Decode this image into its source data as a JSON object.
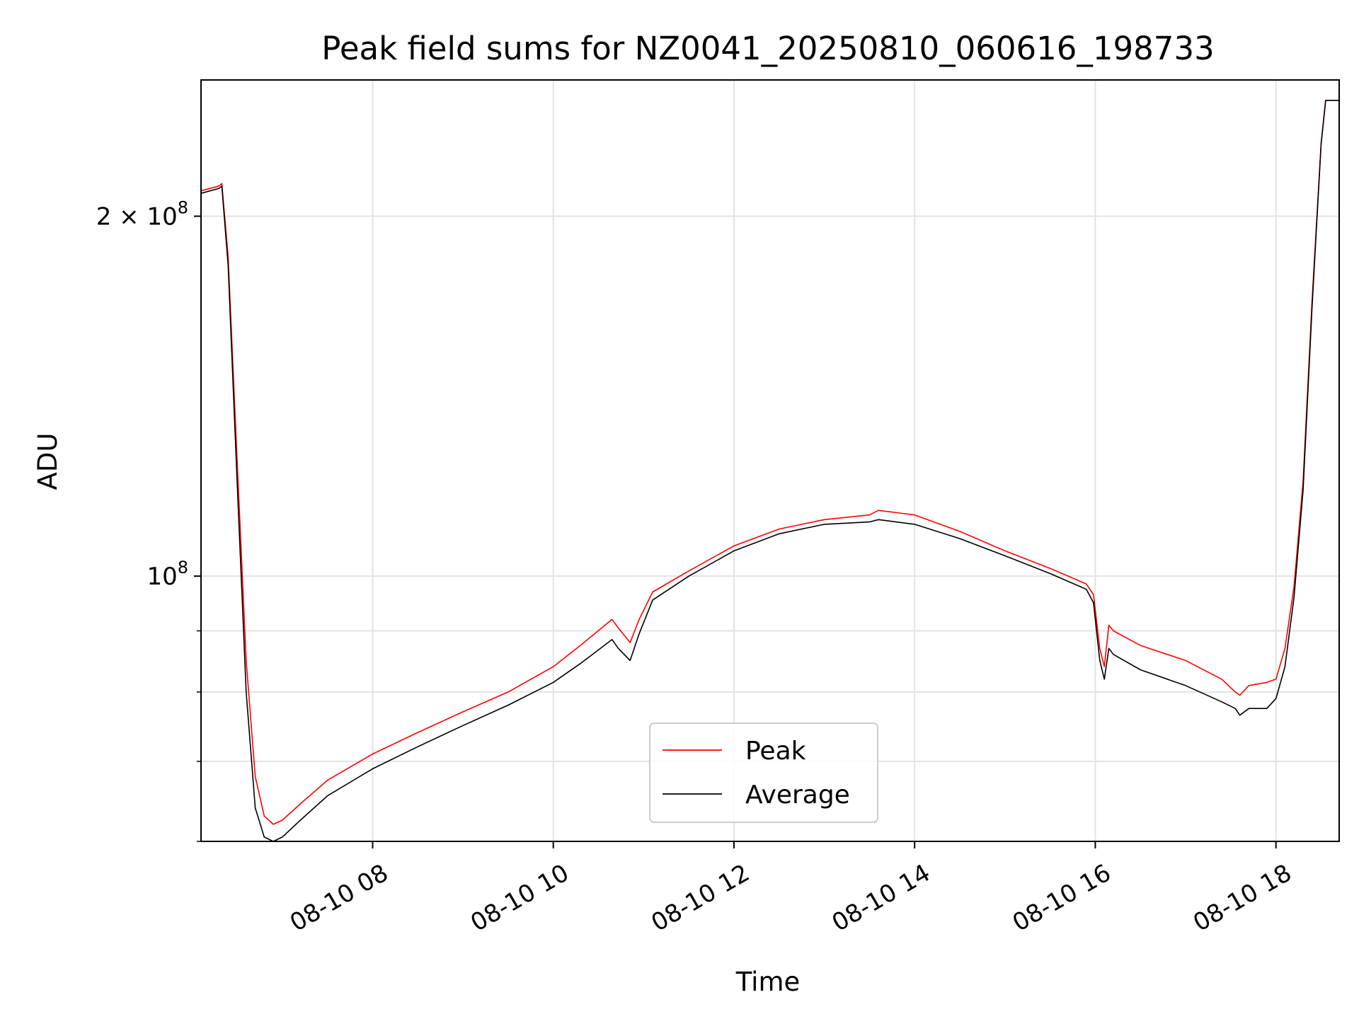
{
  "chart_data": {
    "type": "line",
    "title": "Peak field sums for NZ0041_20250810_060616_198733",
    "xlabel": "Time",
    "ylabel": "ADU",
    "y_scale": "log",
    "ylim": [
      60000000,
      260000000
    ],
    "x_unit": "hour of 2025-08-10",
    "xlim": [
      6.1,
      18.7
    ],
    "grid": true,
    "legend_position": "lower-center",
    "x_ticks": [
      {
        "value": 8,
        "label": "08-10 08"
      },
      {
        "value": 10,
        "label": "08-10 10"
      },
      {
        "value": 12,
        "label": "08-10 12"
      },
      {
        "value": 14,
        "label": "08-10 14"
      },
      {
        "value": 16,
        "label": "08-10 16"
      },
      {
        "value": 18,
        "label": "08-10 18"
      }
    ],
    "y_major_ticks": [
      {
        "value": 100000000,
        "base": "10",
        "exp": "8",
        "mant": ""
      },
      {
        "value": 200000000,
        "base": "10",
        "exp": "8",
        "mant": "2"
      }
    ],
    "y_minor_ticks": [
      60000000,
      70000000,
      80000000,
      90000000
    ],
    "series": [
      {
        "name": "Peak",
        "color": "#ff0000",
        "x": [
          6.1,
          6.3,
          6.33,
          6.4,
          6.5,
          6.6,
          6.7,
          6.8,
          6.9,
          7.0,
          7.2,
          7.5,
          8.0,
          8.5,
          9.0,
          9.5,
          10.0,
          10.3,
          10.65,
          10.72,
          10.85,
          10.95,
          11.1,
          11.5,
          12.0,
          12.5,
          13.0,
          13.5,
          13.6,
          14.0,
          14.5,
          15.0,
          15.5,
          15.9,
          15.98,
          16.05,
          16.1,
          16.15,
          16.2,
          16.5,
          17.0,
          17.4,
          17.55,
          17.6,
          17.7,
          17.9,
          18.0,
          18.1,
          18.2,
          18.3,
          18.4,
          18.5,
          18.55,
          18.7
        ],
        "y": [
          210000000,
          212000000,
          213000000,
          185000000,
          125000000,
          85000000,
          68000000,
          63000000,
          62000000,
          62500000,
          64500000,
          67500000,
          71000000,
          74000000,
          77000000,
          80000000,
          84000000,
          87500000,
          92000000,
          90500000,
          88000000,
          92000000,
          97000000,
          101000000,
          106000000,
          109500000,
          111500000,
          112500000,
          113500000,
          112500000,
          109000000,
          105000000,
          101500000,
          98500000,
          96500000,
          87000000,
          84000000,
          91000000,
          90000000,
          87500000,
          85000000,
          82000000,
          80000000,
          79500000,
          81000000,
          81500000,
          82000000,
          87000000,
          98000000,
          120000000,
          170000000,
          230000000,
          250000000,
          250000000
        ]
      },
      {
        "name": "Average",
        "color": "#000000",
        "x": [
          6.1,
          6.3,
          6.33,
          6.4,
          6.5,
          6.6,
          6.7,
          6.8,
          6.9,
          7.0,
          7.2,
          7.5,
          8.0,
          8.5,
          9.0,
          9.5,
          10.0,
          10.3,
          10.65,
          10.72,
          10.85,
          10.95,
          11.1,
          11.5,
          12.0,
          12.5,
          13.0,
          13.5,
          13.6,
          14.0,
          14.5,
          15.0,
          15.5,
          15.9,
          15.98,
          16.05,
          16.1,
          16.15,
          16.2,
          16.5,
          17.0,
          17.4,
          17.55,
          17.6,
          17.7,
          17.9,
          18.0,
          18.1,
          18.2,
          18.3,
          18.4,
          18.5,
          18.55,
          18.7
        ],
        "y": [
          209000000,
          211000000,
          212000000,
          182000000,
          120000000,
          80000000,
          64000000,
          60500000,
          60000000,
          60500000,
          62500000,
          65500000,
          69000000,
          72000000,
          75000000,
          78000000,
          81500000,
          84500000,
          88500000,
          87000000,
          85000000,
          89500000,
          95500000,
          100000000,
          105000000,
          108500000,
          110500000,
          111000000,
          111500000,
          110500000,
          107500000,
          104000000,
          100500000,
          97500000,
          95000000,
          85000000,
          82000000,
          87000000,
          86000000,
          83500000,
          81000000,
          78500000,
          77500000,
          76500000,
          77500000,
          77500000,
          79000000,
          84000000,
          96000000,
          118000000,
          168000000,
          230000000,
          250000000,
          250000000
        ]
      }
    ]
  }
}
